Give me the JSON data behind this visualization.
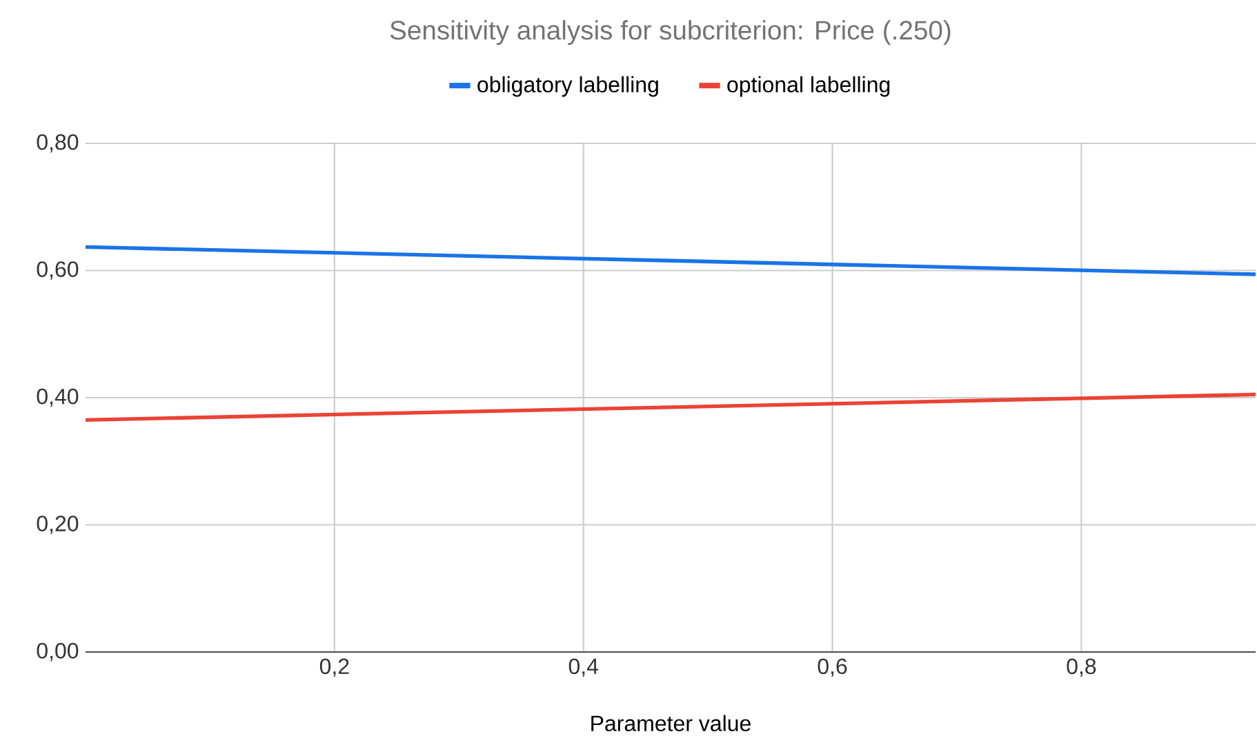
{
  "chart_data": {
    "type": "line",
    "title": "Sensitivity analysis for subcriterion: Price (.250)",
    "xlabel": "Parameter value",
    "x": [
      0,
      0.94
    ],
    "series": [
      {
        "name": "obligatory labelling",
        "color": "#1a73e8",
        "values": [
          0.637,
          0.594
        ]
      },
      {
        "name": "optional labelling",
        "color": "#ea4335",
        "values": [
          0.365,
          0.405
        ]
      }
    ],
    "xlim": [
      0,
      0.94
    ],
    "ylim": [
      0,
      0.8
    ],
    "xticks": [
      {
        "value": 0.2,
        "label": "0,2"
      },
      {
        "value": 0.4,
        "label": "0,4"
      },
      {
        "value": 0.6,
        "label": "0,6"
      },
      {
        "value": 0.8,
        "label": "0,8"
      }
    ],
    "yticks": [
      {
        "value": 0,
        "label": "0,00"
      },
      {
        "value": 0.2,
        "label": "0,20"
      },
      {
        "value": 0.4,
        "label": "0,40"
      },
      {
        "value": 0.6,
        "label": "0,60"
      },
      {
        "value": 0.8,
        "label": "0,80"
      }
    ],
    "grid": true,
    "legend": "top",
    "marker": "none",
    "line_style": "solid"
  }
}
